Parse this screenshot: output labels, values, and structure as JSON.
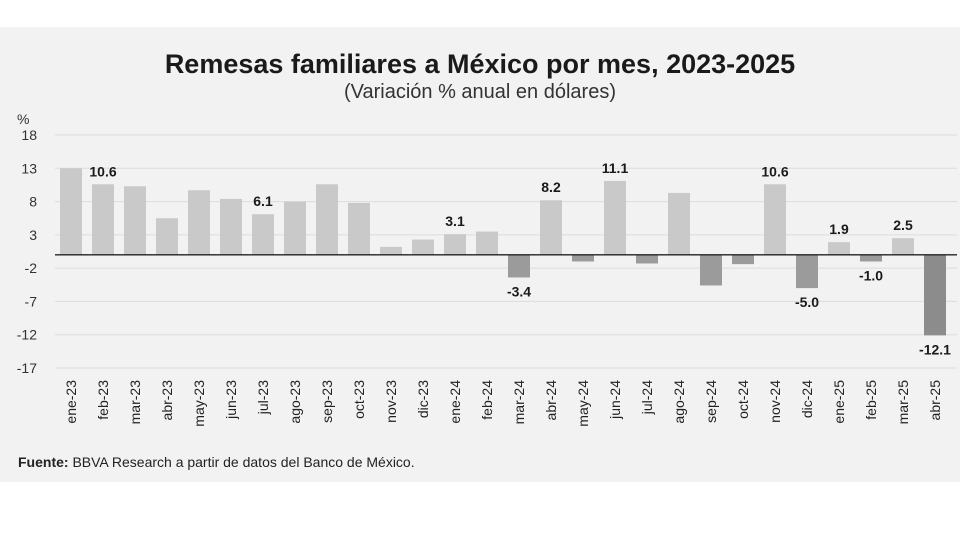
{
  "chart_data": {
    "type": "bar",
    "title": "Remesas familiares a México por mes, 2023-2025",
    "subtitle": "(Variación % anual en dólares)",
    "ylabel": "%",
    "ylim": [
      -17,
      18
    ],
    "yticks": [
      18,
      13,
      8,
      3,
      -2,
      -7,
      -12,
      -17
    ],
    "source_label": "Fuente:",
    "source_text": " BBVA Research a partir de datos del Banco de México.",
    "colors": {
      "positive": "#c9c9c9",
      "negative": "#9b9b9b",
      "highlight": "#8c8c8c",
      "axis": "#222222",
      "grid": "#dcdcdc"
    },
    "categories": [
      "ene-23",
      "feb-23",
      "mar-23",
      "abr-23",
      "may-23",
      "jun-23",
      "jul-23",
      "ago-23",
      "sep-23",
      "oct-23",
      "nov-23",
      "dic-23",
      "ene-24",
      "feb-24",
      "mar-24",
      "abr-24",
      "may-24",
      "jun-24",
      "jul-24",
      "ago-24",
      "sep-24",
      "oct-24",
      "nov-24",
      "dic-24",
      "ene-25",
      "feb-25",
      "mar-25",
      "abr-25"
    ],
    "values": [
      13.0,
      10.6,
      10.3,
      5.5,
      9.7,
      8.4,
      6.1,
      8.0,
      10.6,
      7.8,
      1.2,
      2.3,
      3.1,
      3.5,
      -3.4,
      8.2,
      -1.0,
      11.1,
      -1.3,
      9.3,
      -4.6,
      -1.4,
      10.6,
      -5.0,
      1.9,
      -1.0,
      2.5,
      -12.1
    ],
    "data_labels": [
      {
        "index": 1,
        "text": "10.6"
      },
      {
        "index": 6,
        "text": "6.1"
      },
      {
        "index": 12,
        "text": "3.1"
      },
      {
        "index": 14,
        "text": "-3.4"
      },
      {
        "index": 15,
        "text": "8.2"
      },
      {
        "index": 17,
        "text": "11.1"
      },
      {
        "index": 22,
        "text": "10.6"
      },
      {
        "index": 23,
        "text": "-5.0"
      },
      {
        "index": 24,
        "text": "1.9"
      },
      {
        "index": 25,
        "text": "-1.0"
      },
      {
        "index": 26,
        "text": "2.5"
      },
      {
        "index": 27,
        "text": "-12.1"
      }
    ]
  }
}
